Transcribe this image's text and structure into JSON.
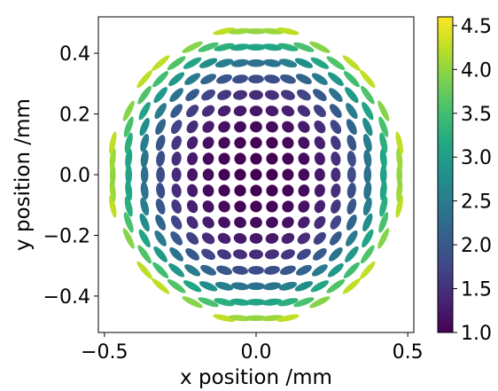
{
  "chart_data": {
    "type": "scatter",
    "title": "",
    "xlabel": "x position /mm",
    "ylabel": "y position /mm",
    "xlim": [
      -0.52,
      0.52
    ],
    "ylim": [
      -0.52,
      0.52
    ],
    "xticks": [
      -0.5,
      0.0,
      0.5
    ],
    "xtick_labels": [
      "−0.5",
      "0.0",
      "0.5"
    ],
    "yticks": [
      -0.4,
      -0.2,
      0.0,
      0.2,
      0.4
    ],
    "ytick_labels": [
      "−0.4",
      "−0.2",
      "0.0",
      "0.2",
      "0.4"
    ],
    "grid": false,
    "description": "Grid of ellipse-shaped spots inside a circular aperture of radius ~0.5 mm; spot spacing ~0.053 mm; color encodes elongation ratio, increasing radially from 1.0 at center to ~4.6 at the rim.",
    "grid_spacing": 0.0525,
    "aperture_radius": 0.5,
    "colorbar": {
      "colormap": "viridis",
      "range": [
        1.0,
        4.6
      ],
      "ticks": [
        1.0,
        1.5,
        2.0,
        2.5,
        3.0,
        3.5,
        4.0,
        4.5
      ],
      "tick_labels": [
        "1.0",
        "1.5",
        "2.0",
        "2.5",
        "3.0",
        "3.5",
        "4.0",
        "4.5"
      ]
    }
  }
}
